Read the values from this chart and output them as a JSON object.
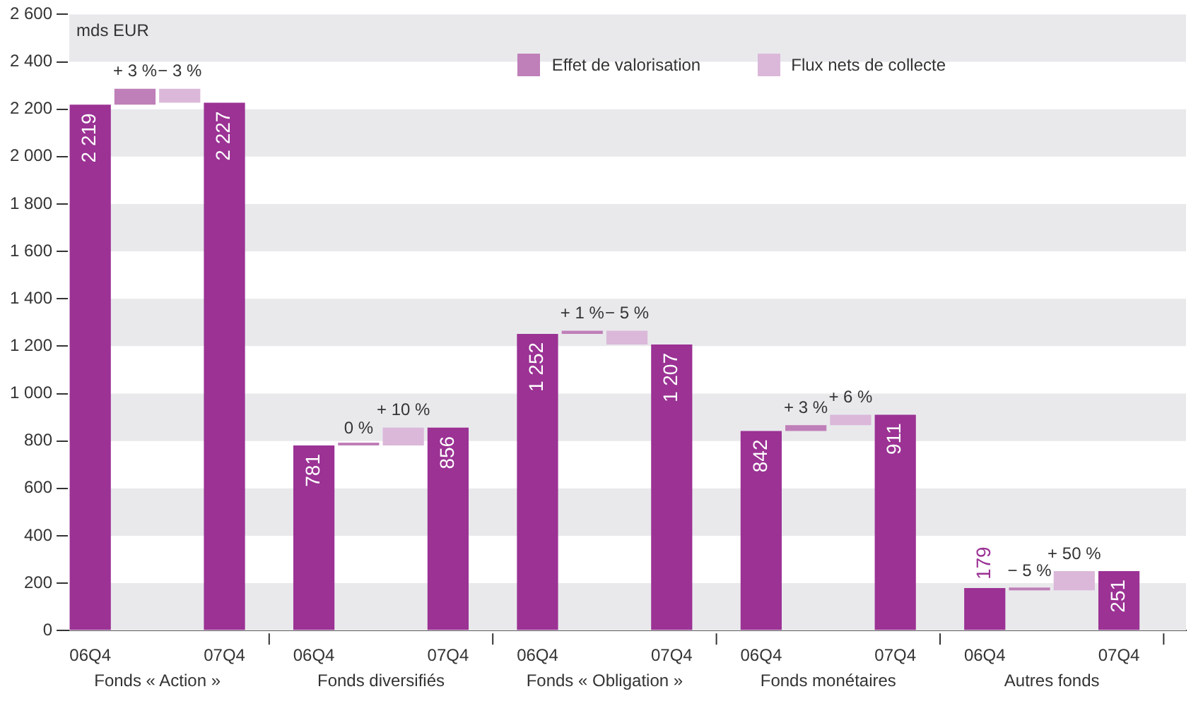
{
  "chart_data": {
    "type": "bar",
    "ylabel": "mds EUR",
    "categories": [
      "06Q4",
      null,
      null,
      "07Q4",
      null,
      "06Q4",
      null,
      null,
      "07Q4",
      null,
      "06Q4",
      null,
      null,
      "07Q4",
      null,
      "06Q4",
      null,
      null,
      "07Q4",
      null,
      "06Q4",
      null,
      null,
      "07Q4",
      null
    ],
    "annotations": [
      "Fonds « Action »",
      "Fonds diversifiés",
      "Fonds « Obligation »",
      "Fonds monétaires",
      "Autres fonds",
      {
        "text": "+ 3 %",
        "y": 2286
      },
      {
        "text": "− 3 %",
        "y": 2286
      },
      {
        "text": "0 %",
        "y": 781
      },
      {
        "text": "+ 10 %",
        "y": 856
      },
      {
        "text": "+ 1 %",
        "y": 1265
      },
      {
        "text": "− 5 %",
        "y": 1265
      },
      {
        "text": "+ 3 %",
        "y": 867
      },
      {
        "text": "+ 6 %",
        "y": 911
      },
      {
        "text": "− 5 %",
        "y": 179
      },
      {
        "text": "+ 50 %",
        "y": 251
      }
    ],
    "bands": [
      {
        "axis": "y",
        "from": 0,
        "to": 200,
        "color": "#e9e9ec"
      },
      {
        "axis": "y",
        "from": 400,
        "to": 600,
        "color": "#e9e9ec"
      },
      {
        "axis": "y",
        "from": 800,
        "to": 1000,
        "color": "#e9e9ec"
      },
      {
        "axis": "y",
        "from": 1200,
        "to": 1400,
        "color": "#e9e9ec"
      },
      {
        "axis": "y",
        "from": 1600,
        "to": 1800,
        "color": "#e9e9ec"
      },
      {
        "axis": "y",
        "from": 2000,
        "to": 2200,
        "color": "#e9e9ec"
      },
      {
        "axis": "y",
        "from": 2400,
        "to": 2600,
        "color": "#e9e9ec"
      }
    ],
    "series": [
      {
        "color": "#9b3294",
        "values": [
          2219,
          null,
          null,
          2227,
          null,
          781,
          null,
          null,
          856,
          null,
          1252,
          null,
          null,
          1207,
          null,
          842,
          null,
          null,
          911,
          null,
          179,
          null,
          null,
          251,
          null
        ],
        "value_labels": [
          "2 219",
          null,
          null,
          "2 227",
          null,
          "781",
          null,
          null,
          "856",
          null,
          "1 252",
          null,
          null,
          "1 207",
          null,
          "842",
          null,
          null,
          "911",
          null,
          "179",
          null,
          null,
          "251",
          null
        ]
      },
      {
        "name": "Effet de valorisation",
        "color": "#bf7fb8",
        "values": [
          null,
          67,
          null,
          null,
          null,
          null,
          0,
          null,
          null,
          null,
          null,
          13,
          null,
          null,
          null,
          null,
          25,
          null,
          null,
          null,
          null,
          -9,
          null,
          null,
          null
        ],
        "base": [
          null,
          2219,
          null,
          null,
          null,
          null,
          781,
          null,
          null,
          null,
          null,
          1252,
          null,
          null,
          null,
          null,
          842,
          null,
          null,
          null,
          null,
          179,
          null,
          null,
          null
        ]
      },
      {
        "name": "Flux nets de collecte",
        "color": "#dbb8d9",
        "values": [
          null,
          null,
          -59,
          null,
          null,
          null,
          null,
          75,
          null,
          null,
          null,
          null,
          -58,
          null,
          null,
          null,
          null,
          44,
          null,
          null,
          null,
          null,
          81,
          null,
          null
        ],
        "base": [
          null,
          null,
          2286,
          null,
          null,
          null,
          null,
          781,
          null,
          null,
          null,
          null,
          1265,
          null,
          null,
          null,
          null,
          867,
          null,
          null,
          null,
          null,
          170,
          null,
          null
        ]
      }
    ],
    "ylim": [
      0,
      2600
    ],
    "yticks": [
      0,
      200,
      400,
      600,
      800,
      {
        "value": 1000,
        "label": "1 000"
      },
      {
        "value": 1200,
        "label": "1 200"
      },
      {
        "value": 1400,
        "label": "1 400"
      },
      {
        "value": 1600,
        "label": "1 600"
      },
      {
        "value": 1800,
        "label": "1 800"
      },
      {
        "value": 2000,
        "label": "2 000"
      },
      {
        "value": 2200,
        "label": "2 200"
      },
      {
        "value": 2400,
        "label": "2 400"
      },
      {
        "value": 2600,
        "label": "2 600"
      }
    ],
    "legend": "top right"
  }
}
